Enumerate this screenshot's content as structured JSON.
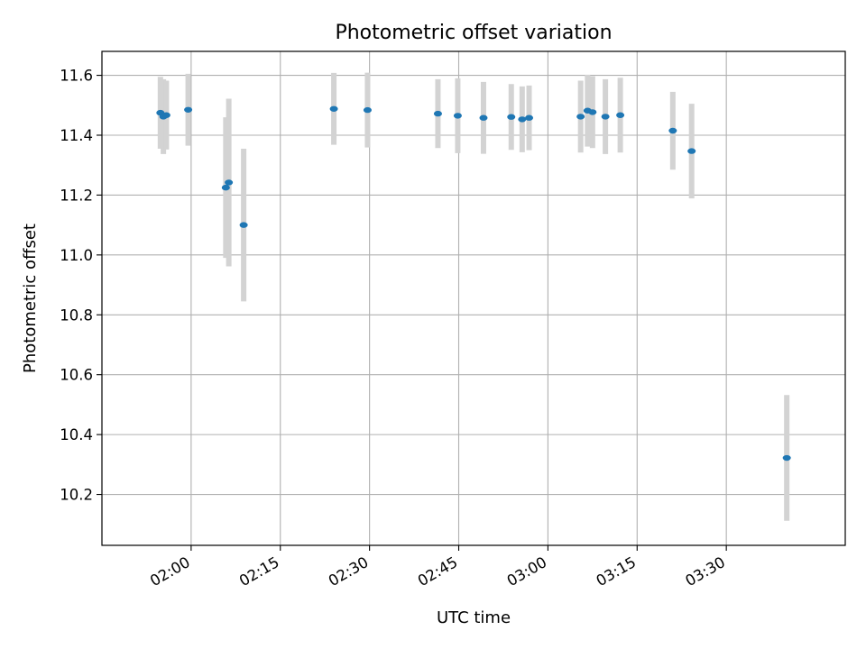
{
  "chart_data": {
    "type": "scatter",
    "title": "Photometric offset variation",
    "xlabel": "UTC time",
    "ylabel": "Photometric offset",
    "x_unit": "UTC time (HH:MM)",
    "xlim": [
      "01:45",
      "03:50"
    ],
    "ylim": [
      10.03,
      11.68
    ],
    "x_ticks": [
      "02:00",
      "02:15",
      "02:30",
      "02:45",
      "03:00",
      "03:15",
      "03:30"
    ],
    "y_ticks": [
      10.2,
      10.4,
      10.6,
      10.8,
      11.0,
      11.2,
      11.4,
      11.6
    ],
    "grid": true,
    "legend": "none",
    "colors": {
      "point": "#1f77b4",
      "errorbar": "#d3d3d3",
      "grid": "#b0b0b0"
    },
    "series": [
      {
        "points": [
          {
            "x": "01:54:50",
            "y": 11.475,
            "yerr": 0.12
          },
          {
            "x": "01:55:20",
            "y": 11.462,
            "yerr": 0.125
          },
          {
            "x": "01:55:50",
            "y": 11.467,
            "yerr": 0.115
          },
          {
            "x": "01:59:30",
            "y": 11.485,
            "yerr": 0.12
          },
          {
            "x": "02:05:50",
            "y": 11.225,
            "yerr": 0.235
          },
          {
            "x": "02:06:20",
            "y": 11.242,
            "yerr": 0.28
          },
          {
            "x": "02:08:50",
            "y": 11.1,
            "yerr": 0.255
          },
          {
            "x": "02:24:00",
            "y": 11.488,
            "yerr": 0.12
          },
          {
            "x": "02:29:40",
            "y": 11.484,
            "yerr": 0.125
          },
          {
            "x": "02:41:30",
            "y": 11.472,
            "yerr": 0.115
          },
          {
            "x": "02:44:50",
            "y": 11.465,
            "yerr": 0.125
          },
          {
            "x": "02:49:10",
            "y": 11.458,
            "yerr": 0.12
          },
          {
            "x": "02:53:50",
            "y": 11.461,
            "yerr": 0.11
          },
          {
            "x": "02:55:40",
            "y": 11.453,
            "yerr": 0.11
          },
          {
            "x": "02:56:50",
            "y": 11.458,
            "yerr": 0.108
          },
          {
            "x": "03:05:30",
            "y": 11.462,
            "yerr": 0.12
          },
          {
            "x": "03:06:40",
            "y": 11.482,
            "yerr": 0.12
          },
          {
            "x": "03:07:30",
            "y": 11.477,
            "yerr": 0.12
          },
          {
            "x": "03:09:40",
            "y": 11.462,
            "yerr": 0.125
          },
          {
            "x": "03:12:10",
            "y": 11.467,
            "yerr": 0.125
          },
          {
            "x": "03:21:00",
            "y": 11.415,
            "yerr": 0.13
          },
          {
            "x": "03:24:10",
            "y": 11.347,
            "yerr": 0.158
          },
          {
            "x": "03:40:10",
            "y": 10.322,
            "yerr": 0.21
          }
        ]
      }
    ]
  }
}
